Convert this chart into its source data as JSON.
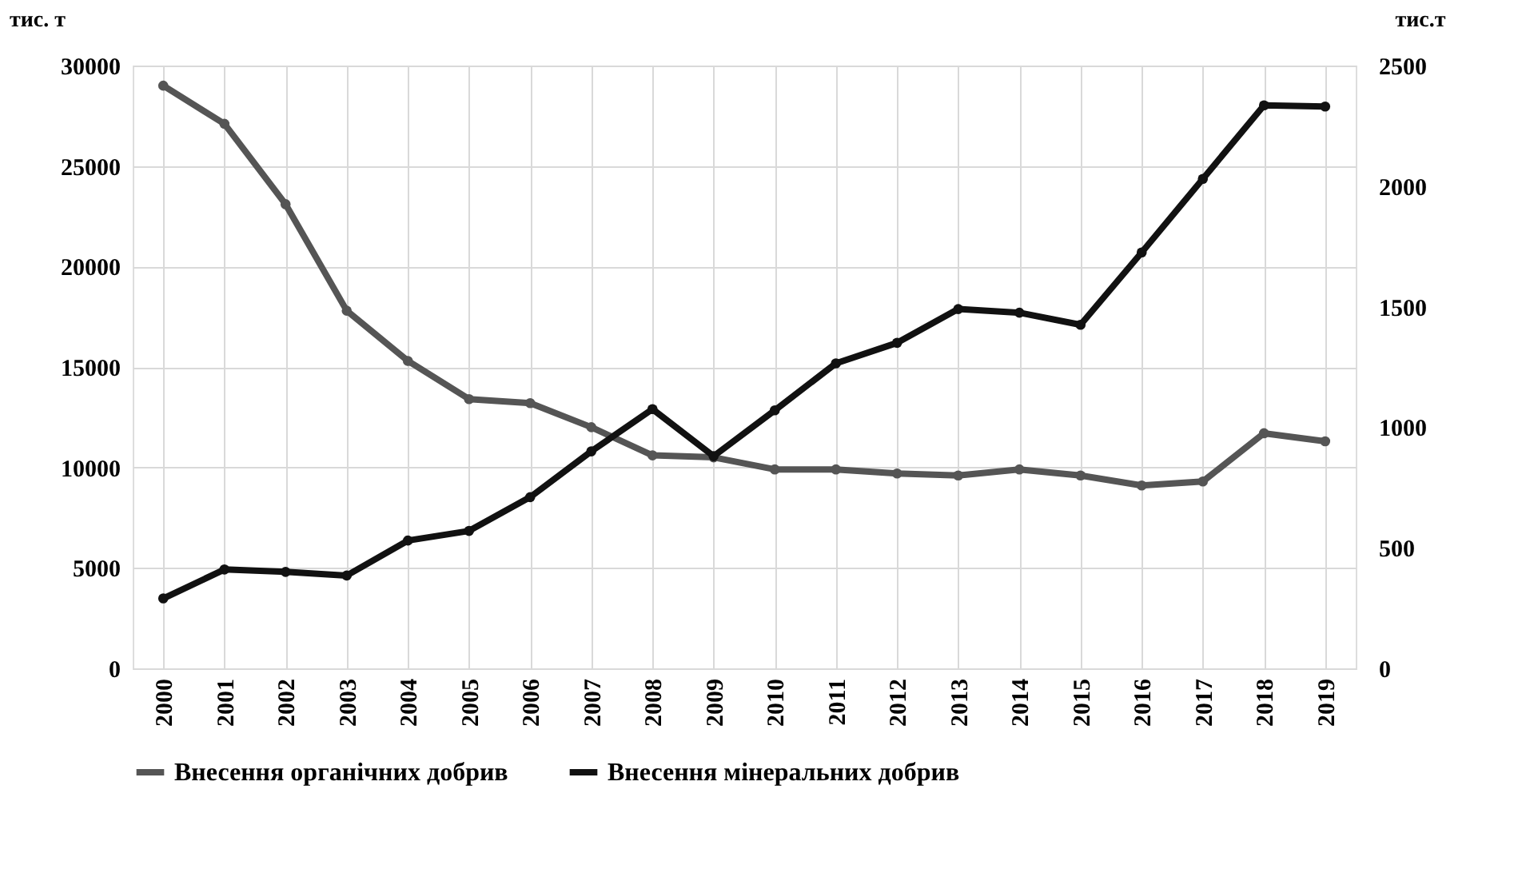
{
  "chart_data": {
    "type": "line",
    "ylabel": "тис. т",
    "y2label": "тис.т",
    "categories": [
      "2000",
      "2001",
      "2002",
      "2003",
      "2004",
      "2005",
      "2006",
      "2007",
      "2008",
      "2009",
      "2010",
      "2011",
      "2012",
      "2013",
      "2014",
      "2015",
      "2016",
      "2017",
      "2018",
      "2019"
    ],
    "series": [
      {
        "name": "Внесення органічних добрив",
        "color": "#555555",
        "values": [
          29000,
          27100,
          23100,
          17800,
          15300,
          13400,
          13200,
          12000,
          10600,
          10500,
          9900,
          9900,
          9700,
          9600,
          9900,
          9600,
          9100,
          9300,
          11700,
          11300
        ]
      },
      {
        "name": "Внесення мінеральних добрив",
        "color": "#111111",
        "axis": "y2",
        "values": [
          290,
          410,
          400,
          385,
          530,
          570,
          710,
          900,
          1075,
          880,
          1070,
          1265,
          1350,
          1490,
          1475,
          1425,
          1725,
          2030,
          2335,
          2330
        ]
      }
    ],
    "ylim": [
      0,
      30000
    ],
    "yticks": [
      0,
      5000,
      10000,
      15000,
      20000,
      25000,
      30000
    ],
    "y2lim": [
      0,
      2500
    ],
    "y2ticks": [
      0,
      500,
      1000,
      1500,
      2000,
      2500
    ],
    "grid": true,
    "legend": "bottom",
    "marker": "circle",
    "line_style": "solid"
  }
}
